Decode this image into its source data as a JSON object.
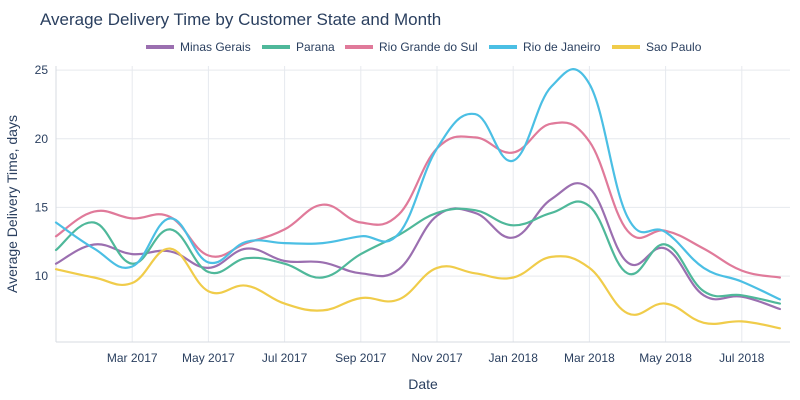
{
  "chart_data": {
    "type": "line",
    "title": "Average Delivery Time by Customer State and Month",
    "xlabel": "Date",
    "ylabel": "Average Delivery Time, days",
    "ylim": [
      5.2,
      25.3
    ],
    "yticks": [
      10,
      15,
      20,
      25
    ],
    "x_start": "2017-01",
    "x": [
      "2017-01",
      "2017-02",
      "2017-03",
      "2017-04",
      "2017-05",
      "2017-06",
      "2017-07",
      "2017-08",
      "2017-09",
      "2017-10",
      "2017-11",
      "2017-12",
      "2018-01",
      "2018-02",
      "2018-03",
      "2018-04",
      "2018-05",
      "2018-06",
      "2018-07",
      "2018-08",
      "2018-09"
    ],
    "xticks": [
      {
        "month_index": 2,
        "label": "Mar 2017"
      },
      {
        "month_index": 4,
        "label": "May 2017"
      },
      {
        "month_index": 6,
        "label": "Jul 2017"
      },
      {
        "month_index": 8,
        "label": "Sep 2017"
      },
      {
        "month_index": 10,
        "label": "Nov 2017"
      },
      {
        "month_index": 12,
        "label": "Jan 2018"
      },
      {
        "month_index": 14,
        "label": "Mar 2018"
      },
      {
        "month_index": 16,
        "label": "May 2018"
      },
      {
        "month_index": 18,
        "label": "Jul 2018"
      }
    ],
    "grid": true,
    "legend_position": "top",
    "series": [
      {
        "name": "Minas Gerais",
        "color": "#9b6fb0",
        "values": [
          10.9,
          12.3,
          11.6,
          11.8,
          10.6,
          12.0,
          11.1,
          11.0,
          10.2,
          10.5,
          14.4,
          14.6,
          12.8,
          15.6,
          16.4,
          11.0,
          12.0,
          8.6,
          8.5,
          7.6,
          null
        ]
      },
      {
        "name": "Parana",
        "color": "#4fb89a",
        "values": [
          11.9,
          13.9,
          10.9,
          13.4,
          10.3,
          11.3,
          10.9,
          9.9,
          11.6,
          13.0,
          14.6,
          14.8,
          13.7,
          14.6,
          15.1,
          10.2,
          12.3,
          8.9,
          8.6,
          8.0,
          null
        ]
      },
      {
        "name": "Rio Grande do Sul",
        "color": "#e07a9a",
        "values": [
          12.9,
          14.7,
          14.2,
          14.3,
          11.5,
          12.4,
          13.4,
          15.2,
          13.9,
          14.5,
          19.3,
          20.1,
          19.0,
          21.1,
          19.8,
          13.3,
          13.3,
          12.0,
          10.4,
          9.9,
          null
        ]
      },
      {
        "name": "Rio de Janeiro",
        "color": "#4bbfe4",
        "values": [
          13.9,
          12.0,
          10.7,
          14.2,
          11.0,
          12.5,
          12.4,
          12.4,
          12.9,
          13.1,
          19.3,
          21.8,
          18.4,
          23.8,
          24.0,
          14.3,
          13.2,
          10.6,
          9.6,
          8.3,
          null
        ]
      },
      {
        "name": "Sao Paulo",
        "color": "#f0cc4a",
        "values": [
          10.5,
          9.9,
          9.5,
          12.0,
          8.9,
          9.3,
          8.0,
          7.5,
          8.4,
          8.3,
          10.6,
          10.2,
          9.9,
          11.4,
          10.6,
          7.3,
          8.0,
          6.6,
          6.7,
          6.2,
          null
        ]
      }
    ]
  }
}
